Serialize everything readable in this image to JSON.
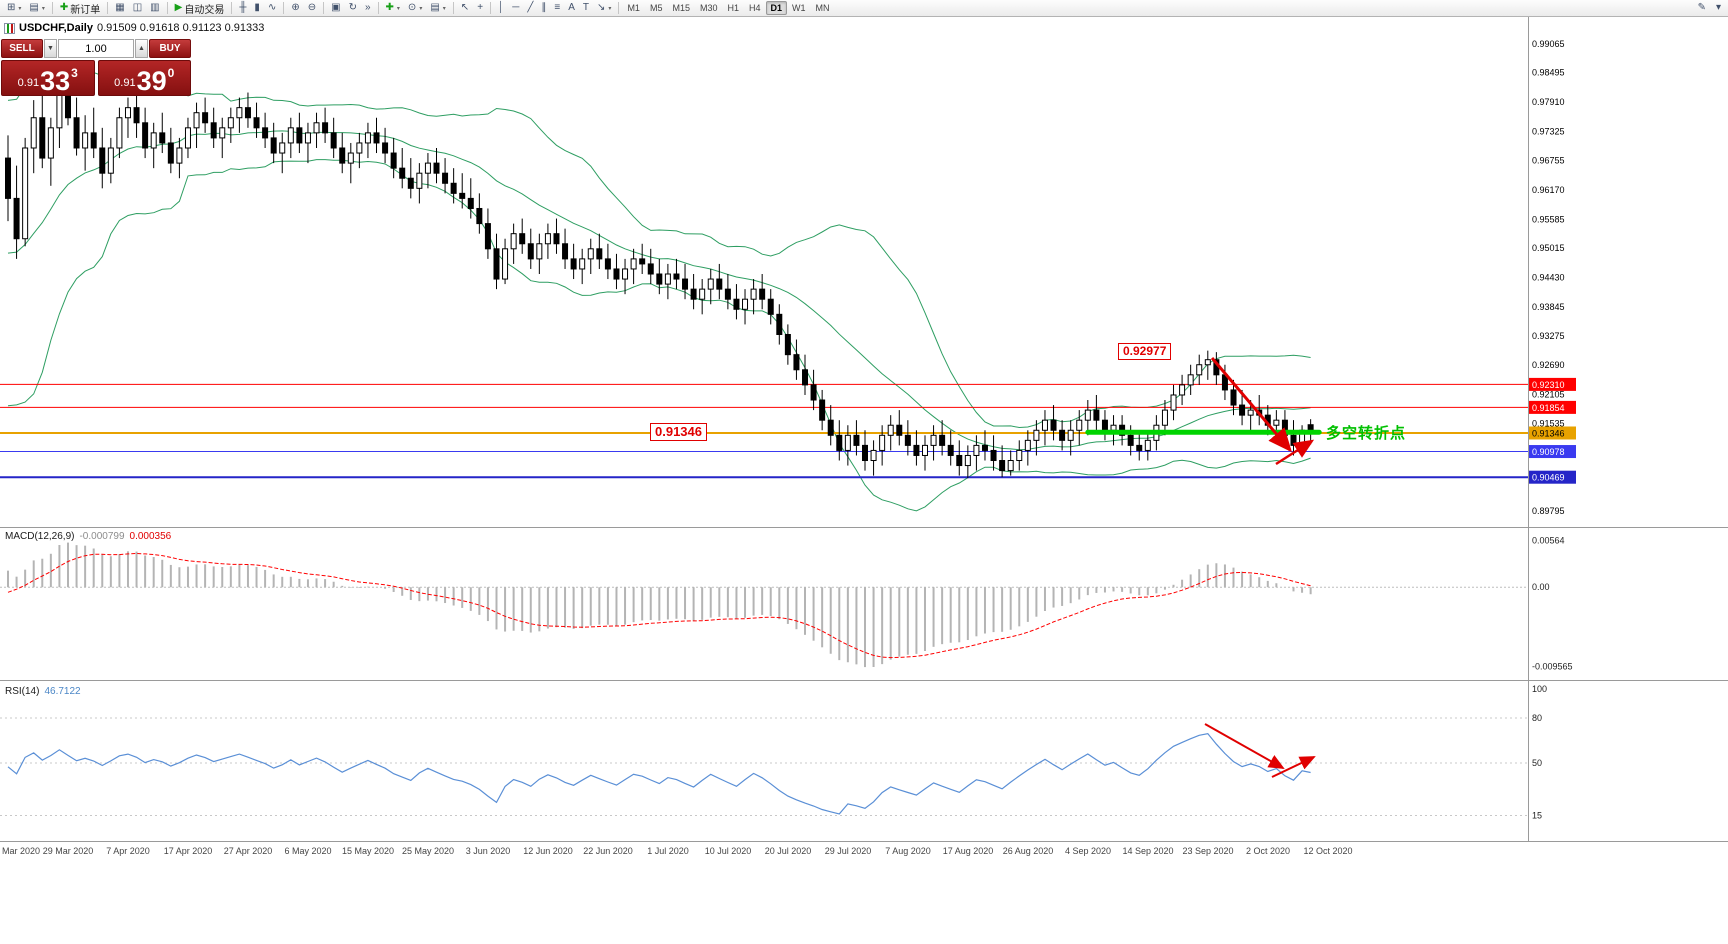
{
  "toolbar": {
    "groups": [
      [
        {
          "name": "new-chart-icon",
          "glyph": "⊞",
          "caret": true
        },
        {
          "name": "chart-profiles-icon",
          "glyph": "▤",
          "caret": true
        }
      ],
      [
        {
          "name": "new-order-button",
          "glyph": "✚",
          "glyph_color": "#18a018",
          "label": "新订单"
        }
      ],
      [
        {
          "name": "market-watch-icon",
          "glyph": "▦"
        },
        {
          "name": "data-window-icon",
          "glyph": "◫"
        },
        {
          "name": "navigator-icon",
          "glyph": "▥"
        }
      ],
      [
        {
          "name": "auto-trading-button",
          "glyph": "▶",
          "glyph_color": "#18a018",
          "label": "自动交易"
        }
      ],
      [
        {
          "name": "bar-chart-icon",
          "glyph": "╫"
        },
        {
          "name": "candlestick-chart-icon",
          "glyph": "▮"
        },
        {
          "name": "line-chart-icon",
          "glyph": "∿"
        }
      ],
      [
        {
          "name": "zoom-in-icon",
          "glyph": "⊕"
        },
        {
          "name": "zoom-out-icon",
          "glyph": "⊖"
        }
      ],
      [
        {
          "name": "tile-windows-icon",
          "glyph": "▣"
        },
        {
          "name": "auto-scroll-icon",
          "glyph": "↻"
        },
        {
          "name": "chart-shift-icon",
          "glyph": "»"
        }
      ],
      [
        {
          "name": "indicators-icon",
          "glyph": "✚",
          "glyph_color": "#18a018",
          "caret": true
        },
        {
          "name": "periods-icon",
          "glyph": "⊙",
          "caret": true
        },
        {
          "name": "templates-icon",
          "glyph": "▤",
          "caret": true
        }
      ],
      [
        {
          "name": "cursor-icon",
          "glyph": "↖"
        },
        {
          "name": "crosshair-icon",
          "glyph": "+"
        }
      ],
      [
        {
          "name": "vertical-line-icon",
          "glyph": "│"
        },
        {
          "name": "horizontal-line-icon",
          "glyph": "─"
        },
        {
          "name": "trendline-icon",
          "glyph": "╱"
        },
        {
          "name": "equidistant-channel-icon",
          "glyph": "∥"
        },
        {
          "name": "fibonacci-icon",
          "glyph": "≡"
        },
        {
          "name": "text-icon",
          "glyph": "A"
        },
        {
          "name": "text-label-icon",
          "glyph": "T"
        },
        {
          "name": "arrows-icon",
          "glyph": "↘",
          "caret": true
        }
      ]
    ],
    "timeframes": [
      "M1",
      "M5",
      "M15",
      "M30",
      "H1",
      "H4",
      "D1",
      "W1",
      "MN"
    ],
    "active_timeframe": "D1",
    "right_icons": [
      {
        "name": "edit-toolbar-icon",
        "glyph": "✎"
      },
      {
        "name": "toolbar-options-icon",
        "glyph": "▾"
      }
    ]
  },
  "chart_header": {
    "symbol_period": "USDCHF,Daily",
    "ohlc": "0.91509 0.91618 0.91123 0.91333"
  },
  "trade_panel": {
    "sell_label": "SELL",
    "buy_label": "BUY",
    "volume": "1.00",
    "sell_price": {
      "prefix": "0.91",
      "big": "33",
      "sup": "3"
    },
    "buy_price": {
      "prefix": "0.91",
      "big": "39",
      "sup": "0"
    }
  },
  "annotations": {
    "peak_price_label": "0.92977",
    "support_price_label": "0.91346",
    "turning_point_text": "多空转折点",
    "green_line": {
      "price": 0.9136,
      "from_index": 126,
      "to_index": 153
    },
    "arrows": {
      "price_down": [
        1212,
        358,
        1290,
        450
      ],
      "price_bounce": [
        1276,
        464,
        1312,
        441
      ],
      "rsi_down": [
        1205,
        724,
        1283,
        768
      ],
      "rsi_bounce": [
        1272,
        777,
        1314,
        757
      ]
    }
  },
  "colors": {
    "bollinger": "#2e9e62",
    "macd_histogram": "#b4b4b4",
    "macd_signal": "#ff0000",
    "rsi_line": "#5a8fd6",
    "annotation_red": "#e00000",
    "annotation_green": "#00d400",
    "candle_up": "#ffffff",
    "candle_down": "#000000",
    "candle_outline": "#000000"
  },
  "chart_data": {
    "type": "candlestick",
    "symbol": "USDCHF",
    "period": "Daily",
    "bollinger": {
      "period": 20,
      "deviation": 2
    },
    "macd": {
      "label": "MACD(12,26,9)",
      "value": "-0.000799",
      "signal_value": "0.000356",
      "axis_labels": [
        "0.00564",
        "0.00",
        "-0.009565"
      ]
    },
    "rsi": {
      "label": "RSI(14)",
      "value": "46.7122",
      "axis_labels": [
        "100",
        "80",
        "50",
        "15"
      ],
      "levels": [
        80,
        50,
        15
      ],
      "period": 14
    },
    "price_axis_labels": [
      "0.99065",
      "0.98495",
      "0.97910",
      "0.97325",
      "0.96755",
      "0.96170",
      "0.95585",
      "0.95015",
      "0.94430",
      "0.93845",
      "0.93275",
      "0.92690",
      "0.92105",
      "0.91535",
      "0.89795"
    ],
    "hlines": [
      {
        "label": "0.92310",
        "price": 0.9231,
        "color": "#ff0000",
        "width": 1,
        "text_color": "#ffffff"
      },
      {
        "label": "0.91854",
        "price": 0.91854,
        "color": "#ff0000",
        "width": 1,
        "text_color": "#ffffff"
      },
      {
        "label": "0.91346",
        "price": 0.91346,
        "color": "#e8a200",
        "width": 2,
        "text_color": "#000000"
      },
      {
        "label": "0.90978",
        "price": 0.90978,
        "color": "#3a3af0",
        "width": 1,
        "text_color": "#ffffff"
      },
      {
        "label": "0.90469",
        "price": 0.90469,
        "color": "#2525c8",
        "width": 2,
        "text_color": "#ffffff"
      }
    ],
    "date_axis_labels": [
      "Mar 2020",
      "29 Mar 2020",
      "7 Apr 2020",
      "17 Apr 2020",
      "27 Apr 2020",
      "6 May 2020",
      "15 May 2020",
      "25 May 2020",
      "3 Jun 2020",
      "12 Jun 2020",
      "22 Jun 2020",
      "1 Jul 2020",
      "10 Jul 2020",
      "20 Jul 2020",
      "29 Jul 2020",
      "7 Aug 2020",
      "17 Aug 2020",
      "26 Aug 2020",
      "4 Sep 2020",
      "14 Sep 2020",
      "23 Sep 2020",
      "2 Oct 2020",
      "12 Oct 2020"
    ],
    "warmup_closes": [
      0.97,
      0.968,
      0.971,
      0.969,
      0.965,
      0.96,
      0.955,
      0.948,
      0.94,
      0.932,
      0.925,
      0.92,
      0.926,
      0.935,
      0.945,
      0.952,
      0.958,
      0.95,
      0.944,
      0.952,
      0.96,
      0.966,
      0.972,
      0.968,
      0.964,
      0.966
    ],
    "candles": [
      [
        0.968,
        0.9725,
        0.9555,
        0.96
      ],
      [
        0.96,
        0.9665,
        0.948,
        0.952
      ],
      [
        0.952,
        0.972,
        0.9505,
        0.97
      ],
      [
        0.97,
        0.9795,
        0.965,
        0.976
      ],
      [
        0.976,
        0.9805,
        0.966,
        0.968
      ],
      [
        0.968,
        0.976,
        0.9625,
        0.974
      ],
      [
        0.974,
        0.985,
        0.97,
        0.982
      ],
      [
        0.982,
        0.986,
        0.9745,
        0.976
      ],
      [
        0.976,
        0.98,
        0.9685,
        0.97
      ],
      [
        0.97,
        0.9765,
        0.9655,
        0.973
      ],
      [
        0.973,
        0.978,
        0.968,
        0.97
      ],
      [
        0.97,
        0.974,
        0.962,
        0.965
      ],
      [
        0.965,
        0.972,
        0.963,
        0.97
      ],
      [
        0.97,
        0.978,
        0.968,
        0.976
      ],
      [
        0.976,
        0.98,
        0.972,
        0.978
      ],
      [
        0.978,
        0.981,
        0.972,
        0.975
      ],
      [
        0.975,
        0.978,
        0.968,
        0.97
      ],
      [
        0.97,
        0.975,
        0.966,
        0.973
      ],
      [
        0.973,
        0.977,
        0.969,
        0.971
      ],
      [
        0.971,
        0.974,
        0.965,
        0.967
      ],
      [
        0.967,
        0.972,
        0.964,
        0.97
      ],
      [
        0.97,
        0.976,
        0.968,
        0.974
      ],
      [
        0.974,
        0.979,
        0.97,
        0.977
      ],
      [
        0.977,
        0.98,
        0.973,
        0.975
      ],
      [
        0.975,
        0.978,
        0.97,
        0.972
      ],
      [
        0.972,
        0.976,
        0.968,
        0.974
      ],
      [
        0.974,
        0.978,
        0.971,
        0.976
      ],
      [
        0.976,
        0.98,
        0.973,
        0.978
      ],
      [
        0.978,
        0.981,
        0.974,
        0.976
      ],
      [
        0.976,
        0.979,
        0.972,
        0.974
      ],
      [
        0.974,
        0.977,
        0.97,
        0.972
      ],
      [
        0.972,
        0.975,
        0.967,
        0.969
      ],
      [
        0.969,
        0.973,
        0.965,
        0.971
      ],
      [
        0.971,
        0.976,
        0.968,
        0.974
      ],
      [
        0.974,
        0.977,
        0.969,
        0.971
      ],
      [
        0.971,
        0.975,
        0.967,
        0.973
      ],
      [
        0.973,
        0.977,
        0.97,
        0.975
      ],
      [
        0.975,
        0.978,
        0.971,
        0.973
      ],
      [
        0.973,
        0.976,
        0.968,
        0.97
      ],
      [
        0.97,
        0.973,
        0.965,
        0.967
      ],
      [
        0.967,
        0.971,
        0.963,
        0.969
      ],
      [
        0.969,
        0.973,
        0.966,
        0.971
      ],
      [
        0.971,
        0.975,
        0.968,
        0.973
      ],
      [
        0.973,
        0.976,
        0.969,
        0.971
      ],
      [
        0.971,
        0.974,
        0.967,
        0.969
      ],
      [
        0.969,
        0.972,
        0.964,
        0.966
      ],
      [
        0.966,
        0.97,
        0.962,
        0.964
      ],
      [
        0.964,
        0.968,
        0.96,
        0.962
      ],
      [
        0.962,
        0.967,
        0.959,
        0.965
      ],
      [
        0.965,
        0.969,
        0.962,
        0.967
      ],
      [
        0.967,
        0.97,
        0.963,
        0.965
      ],
      [
        0.965,
        0.968,
        0.961,
        0.963
      ],
      [
        0.963,
        0.966,
        0.959,
        0.961
      ],
      [
        0.961,
        0.965,
        0.958,
        0.96
      ],
      [
        0.96,
        0.964,
        0.956,
        0.958
      ],
      [
        0.958,
        0.961,
        0.953,
        0.955
      ],
      [
        0.955,
        0.958,
        0.948,
        0.95
      ],
      [
        0.95,
        0.953,
        0.942,
        0.944
      ],
      [
        0.944,
        0.952,
        0.943,
        0.95
      ],
      [
        0.95,
        0.955,
        0.947,
        0.953
      ],
      [
        0.953,
        0.956,
        0.949,
        0.951
      ],
      [
        0.951,
        0.954,
        0.946,
        0.948
      ],
      [
        0.948,
        0.953,
        0.945,
        0.951
      ],
      [
        0.951,
        0.955,
        0.948,
        0.953
      ],
      [
        0.953,
        0.956,
        0.949,
        0.951
      ],
      [
        0.951,
        0.954,
        0.946,
        0.948
      ],
      [
        0.948,
        0.951,
        0.944,
        0.946
      ],
      [
        0.946,
        0.95,
        0.943,
        0.948
      ],
      [
        0.948,
        0.952,
        0.945,
        0.95
      ],
      [
        0.95,
        0.953,
        0.946,
        0.948
      ],
      [
        0.948,
        0.951,
        0.944,
        0.946
      ],
      [
        0.946,
        0.949,
        0.942,
        0.944
      ],
      [
        0.944,
        0.948,
        0.941,
        0.946
      ],
      [
        0.946,
        0.95,
        0.943,
        0.948
      ],
      [
        0.948,
        0.951,
        0.945,
        0.947
      ],
      [
        0.947,
        0.95,
        0.943,
        0.945
      ],
      [
        0.945,
        0.948,
        0.941,
        0.943
      ],
      [
        0.943,
        0.947,
        0.94,
        0.945
      ],
      [
        0.945,
        0.948,
        0.942,
        0.944
      ],
      [
        0.944,
        0.947,
        0.94,
        0.942
      ],
      [
        0.942,
        0.945,
        0.938,
        0.94
      ],
      [
        0.94,
        0.944,
        0.937,
        0.942
      ],
      [
        0.942,
        0.946,
        0.939,
        0.944
      ],
      [
        0.944,
        0.947,
        0.94,
        0.942
      ],
      [
        0.942,
        0.945,
        0.938,
        0.94
      ],
      [
        0.94,
        0.943,
        0.936,
        0.938
      ],
      [
        0.938,
        0.942,
        0.935,
        0.94
      ],
      [
        0.94,
        0.944,
        0.937,
        0.942
      ],
      [
        0.942,
        0.945,
        0.938,
        0.94
      ],
      [
        0.94,
        0.942,
        0.935,
        0.937
      ],
      [
        0.937,
        0.939,
        0.931,
        0.933
      ],
      [
        0.933,
        0.935,
        0.927,
        0.929
      ],
      [
        0.929,
        0.932,
        0.924,
        0.926
      ],
      [
        0.926,
        0.929,
        0.921,
        0.923
      ],
      [
        0.923,
        0.926,
        0.918,
        0.92
      ],
      [
        0.92,
        0.922,
        0.914,
        0.916
      ],
      [
        0.916,
        0.919,
        0.911,
        0.913
      ],
      [
        0.913,
        0.916,
        0.908,
        0.91
      ],
      [
        0.91,
        0.915,
        0.907,
        0.913
      ],
      [
        0.913,
        0.916,
        0.909,
        0.911
      ],
      [
        0.911,
        0.914,
        0.906,
        0.908
      ],
      [
        0.908,
        0.912,
        0.905,
        0.91
      ],
      [
        0.91,
        0.915,
        0.907,
        0.913
      ],
      [
        0.913,
        0.917,
        0.91,
        0.915
      ],
      [
        0.915,
        0.918,
        0.911,
        0.913
      ],
      [
        0.913,
        0.916,
        0.909,
        0.911
      ],
      [
        0.911,
        0.914,
        0.907,
        0.909
      ],
      [
        0.909,
        0.913,
        0.906,
        0.911
      ],
      [
        0.911,
        0.915,
        0.908,
        0.913
      ],
      [
        0.913,
        0.916,
        0.909,
        0.911
      ],
      [
        0.911,
        0.914,
        0.907,
        0.909
      ],
      [
        0.909,
        0.912,
        0.905,
        0.907
      ],
      [
        0.907,
        0.911,
        0.9045,
        0.909
      ],
      [
        0.909,
        0.913,
        0.906,
        0.911
      ],
      [
        0.911,
        0.914,
        0.908,
        0.91
      ],
      [
        0.91,
        0.913,
        0.906,
        0.908
      ],
      [
        0.908,
        0.911,
        0.9047,
        0.906
      ],
      [
        0.906,
        0.91,
        0.905,
        0.908
      ],
      [
        0.908,
        0.912,
        0.906,
        0.91
      ],
      [
        0.91,
        0.914,
        0.907,
        0.912
      ],
      [
        0.912,
        0.916,
        0.909,
        0.914
      ],
      [
        0.914,
        0.918,
        0.911,
        0.916
      ],
      [
        0.916,
        0.919,
        0.912,
        0.914
      ],
      [
        0.914,
        0.916,
        0.91,
        0.912
      ],
      [
        0.912,
        0.916,
        0.909,
        0.914
      ],
      [
        0.914,
        0.918,
        0.911,
        0.916
      ],
      [
        0.916,
        0.92,
        0.913,
        0.918
      ],
      [
        0.918,
        0.921,
        0.914,
        0.916
      ],
      [
        0.916,
        0.918,
        0.912,
        0.914
      ],
      [
        0.914,
        0.917,
        0.911,
        0.915
      ],
      [
        0.915,
        0.917,
        0.911,
        0.913
      ],
      [
        0.913,
        0.915,
        0.909,
        0.911
      ],
      [
        0.911,
        0.914,
        0.908,
        0.91
      ],
      [
        0.91,
        0.914,
        0.908,
        0.912
      ],
      [
        0.912,
        0.917,
        0.91,
        0.915
      ],
      [
        0.915,
        0.92,
        0.913,
        0.918
      ],
      [
        0.918,
        0.923,
        0.916,
        0.921
      ],
      [
        0.921,
        0.925,
        0.919,
        0.923
      ],
      [
        0.923,
        0.927,
        0.921,
        0.925
      ],
      [
        0.925,
        0.929,
        0.923,
        0.927
      ],
      [
        0.927,
        0.9298,
        0.924,
        0.928
      ],
      [
        0.928,
        0.9295,
        0.923,
        0.925
      ],
      [
        0.925,
        0.927,
        0.92,
        0.922
      ],
      [
        0.922,
        0.924,
        0.917,
        0.919
      ],
      [
        0.919,
        0.922,
        0.915,
        0.917
      ],
      [
        0.917,
        0.92,
        0.914,
        0.918
      ],
      [
        0.918,
        0.921,
        0.915,
        0.917
      ],
      [
        0.917,
        0.919,
        0.913,
        0.915
      ],
      [
        0.915,
        0.918,
        0.912,
        0.916
      ],
      [
        0.916,
        0.918,
        0.911,
        0.913
      ],
      [
        0.913,
        0.916,
        0.909,
        0.911
      ],
      [
        0.911,
        0.915,
        0.9095,
        0.914
      ],
      [
        0.9151,
        0.9162,
        0.9112,
        0.9133
      ]
    ]
  }
}
